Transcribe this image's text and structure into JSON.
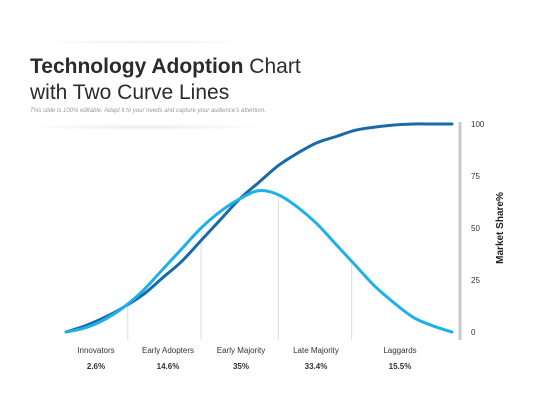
{
  "header": {
    "title_bold": "Technology Adoption",
    "title_rest": " Chart",
    "title_line2": "with Two Curve Lines",
    "subtitle": "This slide is 100% editable. Adapt it to your needs and capture your audience's attention."
  },
  "colors": {
    "bell_curve": "#1fb0e8",
    "s_curve": "#1a6aa8",
    "axis": "#c9c9c9",
    "divider": "#dddddd"
  },
  "chart_data": {
    "type": "line",
    "ylabel": "Market Share%",
    "ylim": [
      0,
      100
    ],
    "yticks": [
      "100",
      "75",
      "50",
      "25",
      "0"
    ],
    "categories": [
      "Innovators",
      "Early Adopters",
      "Early Majority",
      "Late Majority",
      "Laggards"
    ],
    "category_values": [
      "2.6%",
      "14.6%",
      "35%",
      "33.4%",
      "15.5%"
    ],
    "series": [
      {
        "curve": "bell",
        "x": [
          0,
          5,
          10,
          15,
          20,
          25,
          30,
          35,
          40,
          45,
          50,
          55,
          60,
          65,
          70,
          75,
          80,
          85,
          90,
          95,
          100
        ],
        "values": [
          0,
          2,
          6,
          12,
          20,
          30,
          40,
          50,
          58,
          64,
          68,
          66,
          60,
          52,
          42,
          32,
          22,
          14,
          7,
          3,
          0
        ]
      },
      {
        "curve": "s",
        "x": [
          0,
          5,
          10,
          15,
          20,
          25,
          30,
          35,
          40,
          45,
          50,
          55,
          60,
          65,
          70,
          75,
          80,
          85,
          90,
          95,
          100
        ],
        "values": [
          0,
          3,
          7,
          12,
          18,
          26,
          34,
          44,
          54,
          64,
          72,
          80,
          86,
          91,
          94,
          97,
          98.5,
          99.5,
          100,
          100,
          100
        ]
      }
    ],
    "dividers_x": [
      16,
      35,
      55,
      74
    ]
  }
}
